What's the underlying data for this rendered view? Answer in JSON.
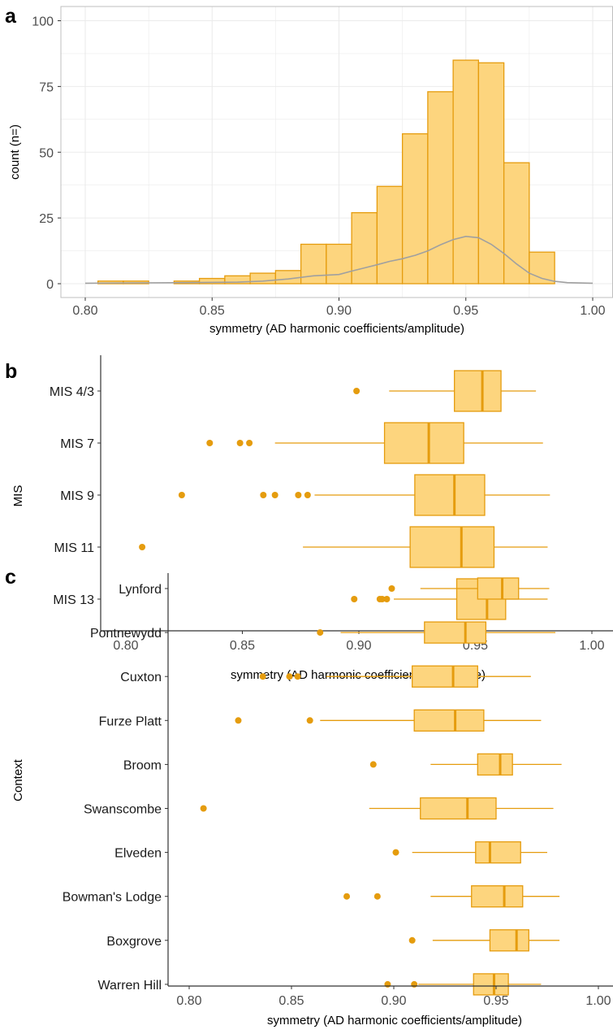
{
  "colors": {
    "fill": "#fdd57e",
    "stroke": "#e59c0e",
    "density": "#a0a0a0",
    "grid": "#ebebeb",
    "border": "#bfbfbf",
    "axis": "#333333"
  },
  "chart_data": [
    {
      "type": "histogram",
      "panel_label": "a",
      "xlabel": "symmetry (AD harmonic coefficients/amplitude)",
      "ylabel": "count (n=)",
      "xlim": [
        0.8,
        1.0
      ],
      "ylim": [
        0,
        100
      ],
      "x_ticks": [
        "0.80",
        "0.85",
        "0.90",
        "0.95",
        "1.00"
      ],
      "y_ticks": [
        "0",
        "25",
        "50",
        "75",
        "100"
      ],
      "grid": true,
      "bins": [
        {
          "x0": 0.805,
          "x1": 0.815,
          "count": 1
        },
        {
          "x0": 0.815,
          "x1": 0.825,
          "count": 1
        },
        {
          "x0": 0.825,
          "x1": 0.835,
          "count": 0
        },
        {
          "x0": 0.835,
          "x1": 0.845,
          "count": 1
        },
        {
          "x0": 0.845,
          "x1": 0.855,
          "count": 2
        },
        {
          "x0": 0.855,
          "x1": 0.865,
          "count": 3
        },
        {
          "x0": 0.865,
          "x1": 0.875,
          "count": 4
        },
        {
          "x0": 0.875,
          "x1": 0.885,
          "count": 5
        },
        {
          "x0": 0.885,
          "x1": 0.895,
          "count": 15
        },
        {
          "x0": 0.895,
          "x1": 0.905,
          "count": 15
        },
        {
          "x0": 0.905,
          "x1": 0.915,
          "count": 27
        },
        {
          "x0": 0.915,
          "x1": 0.925,
          "count": 37
        },
        {
          "x0": 0.925,
          "x1": 0.935,
          "count": 57
        },
        {
          "x0": 0.935,
          "x1": 0.945,
          "count": 73
        },
        {
          "x0": 0.945,
          "x1": 0.955,
          "count": 85
        },
        {
          "x0": 0.955,
          "x1": 0.965,
          "count": 84
        },
        {
          "x0": 0.965,
          "x1": 0.975,
          "count": 46
        },
        {
          "x0": 0.975,
          "x1": 0.985,
          "count": 12
        }
      ],
      "density_curve": {
        "x": [
          0.8,
          0.82,
          0.84,
          0.86,
          0.87,
          0.88,
          0.89,
          0.9,
          0.905,
          0.91,
          0.915,
          0.92,
          0.925,
          0.93,
          0.935,
          0.94,
          0.945,
          0.95,
          0.955,
          0.96,
          0.965,
          0.97,
          0.975,
          0.98,
          0.985,
          0.99,
          1.0
        ],
        "y": [
          0.2,
          0.3,
          0.4,
          0.6,
          1.0,
          1.8,
          3.0,
          3.5,
          4.8,
          6.0,
          7.2,
          8.5,
          9.5,
          10.8,
          12.5,
          14.8,
          16.8,
          18.0,
          17.5,
          15.0,
          11.5,
          7.5,
          4.0,
          2.0,
          0.9,
          0.4,
          0.2
        ]
      }
    },
    {
      "type": "boxplot",
      "panel_label": "b",
      "xlabel": "symmetry (AD harmonic coefficients/amplitude)",
      "ylabel": "MIS",
      "xlim": [
        0.79,
        1.005
      ],
      "x_ticks": [
        "0.80",
        "0.85",
        "0.90",
        "0.95",
        "1.00"
      ],
      "grid": false,
      "groups": [
        {
          "name": "MIS 4/3",
          "whisker_low": 0.913,
          "q1": 0.941,
          "median": 0.953,
          "q3": 0.961,
          "whisker_high": 0.976,
          "outliers": [
            0.899
          ]
        },
        {
          "name": "MIS 7",
          "whisker_low": 0.864,
          "q1": 0.911,
          "median": 0.93,
          "q3": 0.945,
          "whisker_high": 0.979,
          "outliers": [
            0.836,
            0.849,
            0.853
          ]
        },
        {
          "name": "MIS 9",
          "whisker_low": 0.881,
          "q1": 0.924,
          "median": 0.941,
          "q3": 0.954,
          "whisker_high": 0.982,
          "outliers": [
            0.824,
            0.859,
            0.864,
            0.874,
            0.878
          ]
        },
        {
          "name": "MIS 11",
          "whisker_low": 0.876,
          "q1": 0.922,
          "median": 0.944,
          "q3": 0.958,
          "whisker_high": 0.981,
          "outliers": [
            0.807
          ]
        },
        {
          "name": "MIS 13",
          "whisker_low": 0.915,
          "q1": 0.942,
          "median": 0.955,
          "q3": 0.963,
          "whisker_high": 0.981,
          "outliers": [
            0.898,
            0.909,
            0.91,
            0.912
          ]
        }
      ]
    },
    {
      "type": "boxplot",
      "panel_label": "c",
      "xlabel": "symmetry (AD harmonic coefficients/amplitude)",
      "ylabel": "Context",
      "xlim": [
        0.79,
        1.005
      ],
      "x_ticks": [
        "0.80",
        "0.85",
        "0.90",
        "0.95",
        "1.00"
      ],
      "grid": false,
      "groups": [
        {
          "name": "Lynford",
          "whisker_low": 0.913,
          "q1": 0.941,
          "median": 0.953,
          "q3": 0.961,
          "whisker_high": 0.976,
          "outliers": [
            0.899
          ]
        },
        {
          "name": "Pontnewydd",
          "whisker_low": 0.874,
          "q1": 0.915,
          "median": 0.935,
          "q3": 0.945,
          "whisker_high": 0.979,
          "outliers": [
            0.864
          ]
        },
        {
          "name": "Cuxton",
          "whisker_low": 0.867,
          "q1": 0.909,
          "median": 0.929,
          "q3": 0.941,
          "whisker_high": 0.967,
          "outliers": [
            0.836,
            0.849,
            0.853
          ]
        },
        {
          "name": "Furze Platt",
          "whisker_low": 0.864,
          "q1": 0.91,
          "median": 0.93,
          "q3": 0.944,
          "whisker_high": 0.972,
          "outliers": [
            0.824,
            0.859
          ]
        },
        {
          "name": "Broom",
          "whisker_low": 0.918,
          "q1": 0.941,
          "median": 0.952,
          "q3": 0.958,
          "whisker_high": 0.982,
          "outliers": [
            0.89
          ]
        },
        {
          "name": "Swanscombe",
          "whisker_low": 0.888,
          "q1": 0.913,
          "median": 0.936,
          "q3": 0.95,
          "whisker_high": 0.978,
          "outliers": [
            0.807
          ]
        },
        {
          "name": "Elveden",
          "whisker_low": 0.909,
          "q1": 0.94,
          "median": 0.947,
          "q3": 0.962,
          "whisker_high": 0.975,
          "outliers": [
            0.901
          ]
        },
        {
          "name": "Bowman's Lodge",
          "whisker_low": 0.918,
          "q1": 0.938,
          "median": 0.954,
          "q3": 0.963,
          "whisker_high": 0.981,
          "outliers": [
            0.877,
            0.892
          ]
        },
        {
          "name": "Boxgrove",
          "whisker_low": 0.919,
          "q1": 0.947,
          "median": 0.96,
          "q3": 0.966,
          "whisker_high": 0.981,
          "outliers": [
            0.909
          ]
        },
        {
          "name": "Warren Hill",
          "whisker_low": 0.912,
          "q1": 0.939,
          "median": 0.949,
          "q3": 0.956,
          "whisker_high": 0.972,
          "outliers": [
            0.897,
            0.91
          ]
        }
      ]
    }
  ]
}
